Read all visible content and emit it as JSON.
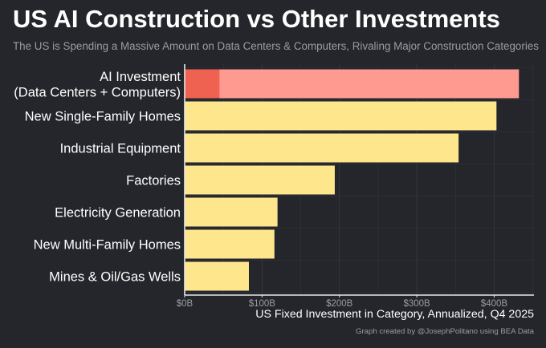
{
  "title": "US AI Construction vs Other Investments",
  "subtitle": "The US is Spending a Massive Amount on Data Centers & Computers, Rivaling Major Construction Categories",
  "caption": "Graph created by @JosephPolitano using BEA Data",
  "colors": {
    "background": "#24262b",
    "bar": "#fde68c",
    "ai_bar": "#ff9a91",
    "ai_bar_segment": "#ef6150",
    "grid": "#34363c",
    "axis": "#e8e8e8"
  },
  "chart_data": {
    "type": "bar",
    "orientation": "horizontal",
    "title": "US AI Construction vs Other Investments",
    "subtitle": "The US is Spending a Massive Amount on Data Centers & Computers, Rivaling Major Construction Categories",
    "xlabel": "US Fixed Investment in Category, Annualized, Q4 2025",
    "ylabel": "",
    "xlim": [
      0,
      450
    ],
    "xticks": [
      0,
      100,
      200,
      300,
      400
    ],
    "xtick_labels": [
      "$0B",
      "$100B",
      "$200B",
      "$300B",
      "$400B"
    ],
    "categories": [
      [
        "AI Investment",
        "(Data Centers + Computers)"
      ],
      [
        "New Single-Family Homes"
      ],
      [
        "Industrial Equipment"
      ],
      [
        "Factories"
      ],
      [
        "Electricity Generation"
      ],
      [
        "New Multi-Family Homes"
      ],
      [
        "Mines & Oil/Gas Wells"
      ]
    ],
    "values": [
      432,
      403,
      354,
      194,
      120,
      116,
      83
    ],
    "ai_segment_value": 45,
    "grid": true
  }
}
